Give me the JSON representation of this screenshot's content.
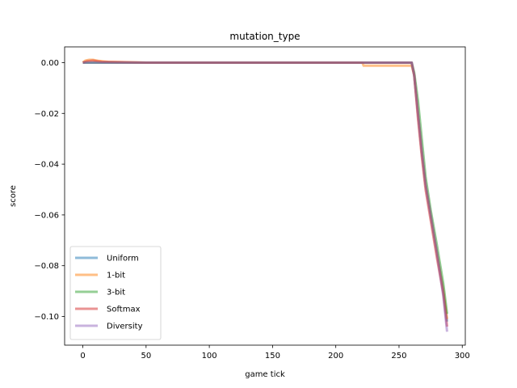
{
  "chart_data": {
    "type": "line",
    "title": "mutation_type",
    "xlabel": "game tick",
    "ylabel": "score",
    "xlim": [
      -14.4,
      302.4
    ],
    "ylim": [
      -0.1113,
      0.0062
    ],
    "xticks": [
      0,
      50,
      100,
      150,
      200,
      250,
      300
    ],
    "xtick_labels": [
      "0",
      "50",
      "100",
      "150",
      "200",
      "250",
      "300"
    ],
    "yticks": [
      0.0,
      -0.02,
      -0.04,
      -0.06,
      -0.08,
      -0.1
    ],
    "ytick_labels": [
      "0.00",
      "−0.02",
      "−0.04",
      "−0.06",
      "−0.08",
      "−0.10"
    ],
    "grid": false,
    "legend_position": "lower-left",
    "series": [
      {
        "name": "Uniform",
        "color": "#1f77b4",
        "x": [
          0,
          50,
          100,
          150,
          200,
          250,
          260,
          262,
          265,
          268,
          271,
          275,
          280,
          285,
          288
        ],
        "y": [
          0.0,
          0.0,
          0.0,
          0.0,
          0.0,
          0.0,
          0.0,
          -0.005,
          -0.02,
          -0.035,
          -0.048,
          -0.06,
          -0.075,
          -0.09,
          -0.102
        ]
      },
      {
        "name": "1-bit",
        "color": "#ff7f0e",
        "x": [
          0,
          2,
          5,
          8,
          12,
          20,
          50,
          100,
          150,
          200,
          221,
          222,
          230,
          240,
          250,
          260,
          262,
          265,
          268,
          271,
          275,
          280,
          285,
          288
        ],
        "y": [
          0.0,
          0.0008,
          0.0011,
          0.0011,
          0.0007,
          0.0003,
          0.0,
          0.0,
          0.0,
          0.0,
          0.0,
          -0.0012,
          -0.0012,
          -0.0012,
          -0.0012,
          -0.0012,
          -0.005,
          -0.02,
          -0.035,
          -0.048,
          -0.06,
          -0.075,
          -0.09,
          -0.101
        ]
      },
      {
        "name": "3-bit",
        "color": "#2ca02c",
        "x": [
          0,
          50,
          100,
          150,
          200,
          250,
          260,
          262,
          265,
          268,
          271,
          275,
          280,
          285,
          288
        ],
        "y": [
          0.0,
          0.0,
          0.0,
          0.0,
          0.0,
          0.0,
          0.0,
          -0.004,
          -0.015,
          -0.03,
          -0.045,
          -0.058,
          -0.072,
          -0.087,
          -0.099
        ]
      },
      {
        "name": "Softmax",
        "color": "#d62728",
        "x": [
          0,
          3,
          8,
          15,
          50,
          100,
          150,
          200,
          250,
          260,
          262,
          265,
          268,
          271,
          275,
          280,
          285,
          288
        ],
        "y": [
          0.0,
          0.0005,
          0.0008,
          0.0003,
          0.0,
          0.0,
          0.0,
          0.0,
          0.0,
          0.0,
          -0.005,
          -0.022,
          -0.037,
          -0.05,
          -0.062,
          -0.077,
          -0.091,
          -0.104
        ]
      },
      {
        "name": "Diversity",
        "color": "#9467bd",
        "x": [
          0,
          50,
          100,
          150,
          200,
          250,
          260,
          262,
          265,
          268,
          271,
          275,
          280,
          285,
          288
        ],
        "y": [
          0.0,
          0.0,
          0.0,
          0.0,
          0.0,
          0.0,
          0.0,
          -0.005,
          -0.02,
          -0.035,
          -0.048,
          -0.06,
          -0.075,
          -0.092,
          -0.106
        ]
      }
    ]
  }
}
